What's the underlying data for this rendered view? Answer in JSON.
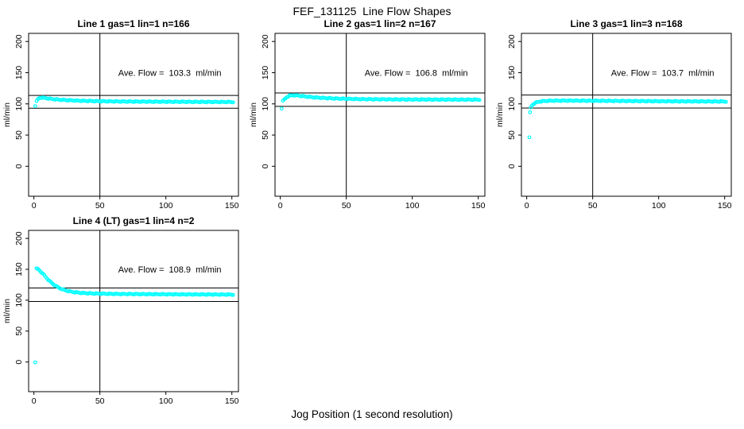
{
  "figure": {
    "title": "FEF_131125  Line Flow Shapes",
    "xlabel": "Jog Position (1 second resolution)",
    "background": "#ffffff",
    "point_color": "#00ffff",
    "axis_color": "#000000"
  },
  "chart_data": [
    {
      "type": "scatter",
      "title": "Line 1 gas=1 lin=1 n=166",
      "ylabel": "ml/min",
      "annotation": "Ave. Flow =  103.3  ml/min",
      "ave_flow": 103.3,
      "units": "ml/min",
      "xticks": [
        0,
        50,
        100,
        150
      ],
      "yticks": [
        0,
        50,
        100,
        150,
        200
      ],
      "xlim": [
        -4,
        155
      ],
      "ylim": [
        -48,
        213
      ],
      "vline_x": 50,
      "hlines": [
        113.6,
        93.0
      ],
      "annotation_pos": [
        103,
        150
      ],
      "points": [
        [
          1,
          97
        ],
        [
          2,
          104
        ],
        [
          3,
          107.5
        ],
        [
          4,
          109.2
        ],
        [
          5,
          110
        ],
        [
          7,
          109.8
        ],
        [
          10,
          108.9
        ],
        [
          14,
          107.7
        ],
        [
          18,
          106.9
        ],
        [
          25,
          105.9
        ],
        [
          35,
          105
        ],
        [
          50,
          104.2
        ],
        [
          70,
          103.7
        ],
        [
          90,
          103.5
        ],
        [
          110,
          103.3
        ],
        [
          130,
          103.1
        ],
        [
          151,
          103
        ]
      ]
    },
    {
      "type": "scatter",
      "title": "Line 2 gas=1 lin=2 n=167",
      "ylabel": "ml/min",
      "annotation": "Ave. Flow =  106.8  ml/min",
      "ave_flow": 106.8,
      "units": "ml/min",
      "xticks": [
        0,
        50,
        100,
        150
      ],
      "yticks": [
        0,
        50,
        100,
        150,
        200
      ],
      "xlim": [
        -4,
        155
      ],
      "ylim": [
        -48,
        213
      ],
      "vline_x": 50,
      "hlines": [
        117.5,
        96.1
      ],
      "annotation_pos": [
        103,
        150
      ],
      "points": [
        [
          1,
          93
        ],
        [
          2,
          104.5
        ],
        [
          3,
          107
        ],
        [
          4,
          109
        ],
        [
          5,
          111
        ],
        [
          7,
          113
        ],
        [
          9,
          113.8
        ],
        [
          12,
          113.6
        ],
        [
          16,
          112.6
        ],
        [
          20,
          111.6
        ],
        [
          25,
          110.5
        ],
        [
          30,
          109.8
        ],
        [
          40,
          108.7
        ],
        [
          50,
          108.1
        ],
        [
          60,
          107.6
        ],
        [
          80,
          107.2
        ],
        [
          100,
          107
        ],
        [
          120,
          106.9
        ],
        [
          151,
          106.8
        ]
      ]
    },
    {
      "type": "scatter",
      "title": "Line 3 gas=1 lin=3 n=168",
      "ylabel": "ml/min",
      "annotation": "Ave. Flow =  103.7  ml/min",
      "ave_flow": 103.7,
      "units": "ml/min",
      "xticks": [
        0,
        50,
        100,
        150
      ],
      "yticks": [
        0,
        50,
        100,
        150,
        200
      ],
      "xlim": [
        -4,
        155
      ],
      "ylim": [
        -48,
        213
      ],
      "vline_x": 50,
      "hlines": [
        114.1,
        93.3
      ],
      "annotation_pos": [
        103,
        150
      ],
      "points": [
        [
          2,
          47
        ],
        [
          2.5,
          86
        ],
        [
          3,
          94
        ],
        [
          4,
          97.5
        ],
        [
          5,
          99.5
        ],
        [
          6,
          101
        ],
        [
          8,
          102.8
        ],
        [
          10,
          103.8
        ],
        [
          13,
          104.5
        ],
        [
          16,
          104.9
        ],
        [
          20,
          105.1
        ],
        [
          30,
          105.2
        ],
        [
          40,
          105.1
        ],
        [
          60,
          104.8
        ],
        [
          80,
          104.5
        ],
        [
          100,
          104.2
        ],
        [
          120,
          104
        ],
        [
          151,
          103.8
        ]
      ]
    },
    {
      "type": "scatter",
      "title": "Line 4 (LT) gas=1 lin=4 n=2",
      "ylabel": "ml/min",
      "annotation": "Ave. Flow =  108.9  ml/min",
      "ave_flow": 108.9,
      "units": "ml/min",
      "xticks": [
        0,
        50,
        100,
        150
      ],
      "yticks": [
        0,
        50,
        100,
        150,
        200
      ],
      "xlim": [
        -4,
        155
      ],
      "ylim": [
        -48,
        213
      ],
      "vline_x": 50,
      "hlines": [
        119.8,
        98.0
      ],
      "annotation_pos": [
        103,
        150
      ],
      "points": [
        [
          1,
          0
        ],
        [
          2,
          151
        ],
        [
          3,
          150.5
        ],
        [
          4,
          148.6
        ],
        [
          5,
          146.6
        ],
        [
          6,
          144.6
        ],
        [
          7,
          142.5
        ],
        [
          8,
          140.1
        ],
        [
          9,
          137.6
        ],
        [
          10,
          135.1
        ],
        [
          11,
          132.9
        ],
        [
          12,
          130.9
        ],
        [
          13,
          128.9
        ],
        [
          14,
          127.1
        ],
        [
          15,
          125.4
        ],
        [
          16,
          123.9
        ],
        [
          17,
          122.5
        ],
        [
          18,
          121.2
        ],
        [
          19,
          120.1
        ],
        [
          20,
          119
        ],
        [
          22,
          117.3
        ],
        [
          24,
          115.9
        ],
        [
          26,
          114.8
        ],
        [
          28,
          113.9
        ],
        [
          30,
          113.2
        ],
        [
          33,
          112.4
        ],
        [
          36,
          111.8
        ],
        [
          40,
          111.3
        ],
        [
          45,
          110.9
        ],
        [
          50,
          110.6
        ],
        [
          60,
          110.2
        ],
        [
          70,
          110
        ],
        [
          85,
          109.8
        ],
        [
          100,
          109.6
        ],
        [
          115,
          109.4
        ],
        [
          130,
          109.3
        ],
        [
          151,
          109.1
        ]
      ]
    }
  ]
}
